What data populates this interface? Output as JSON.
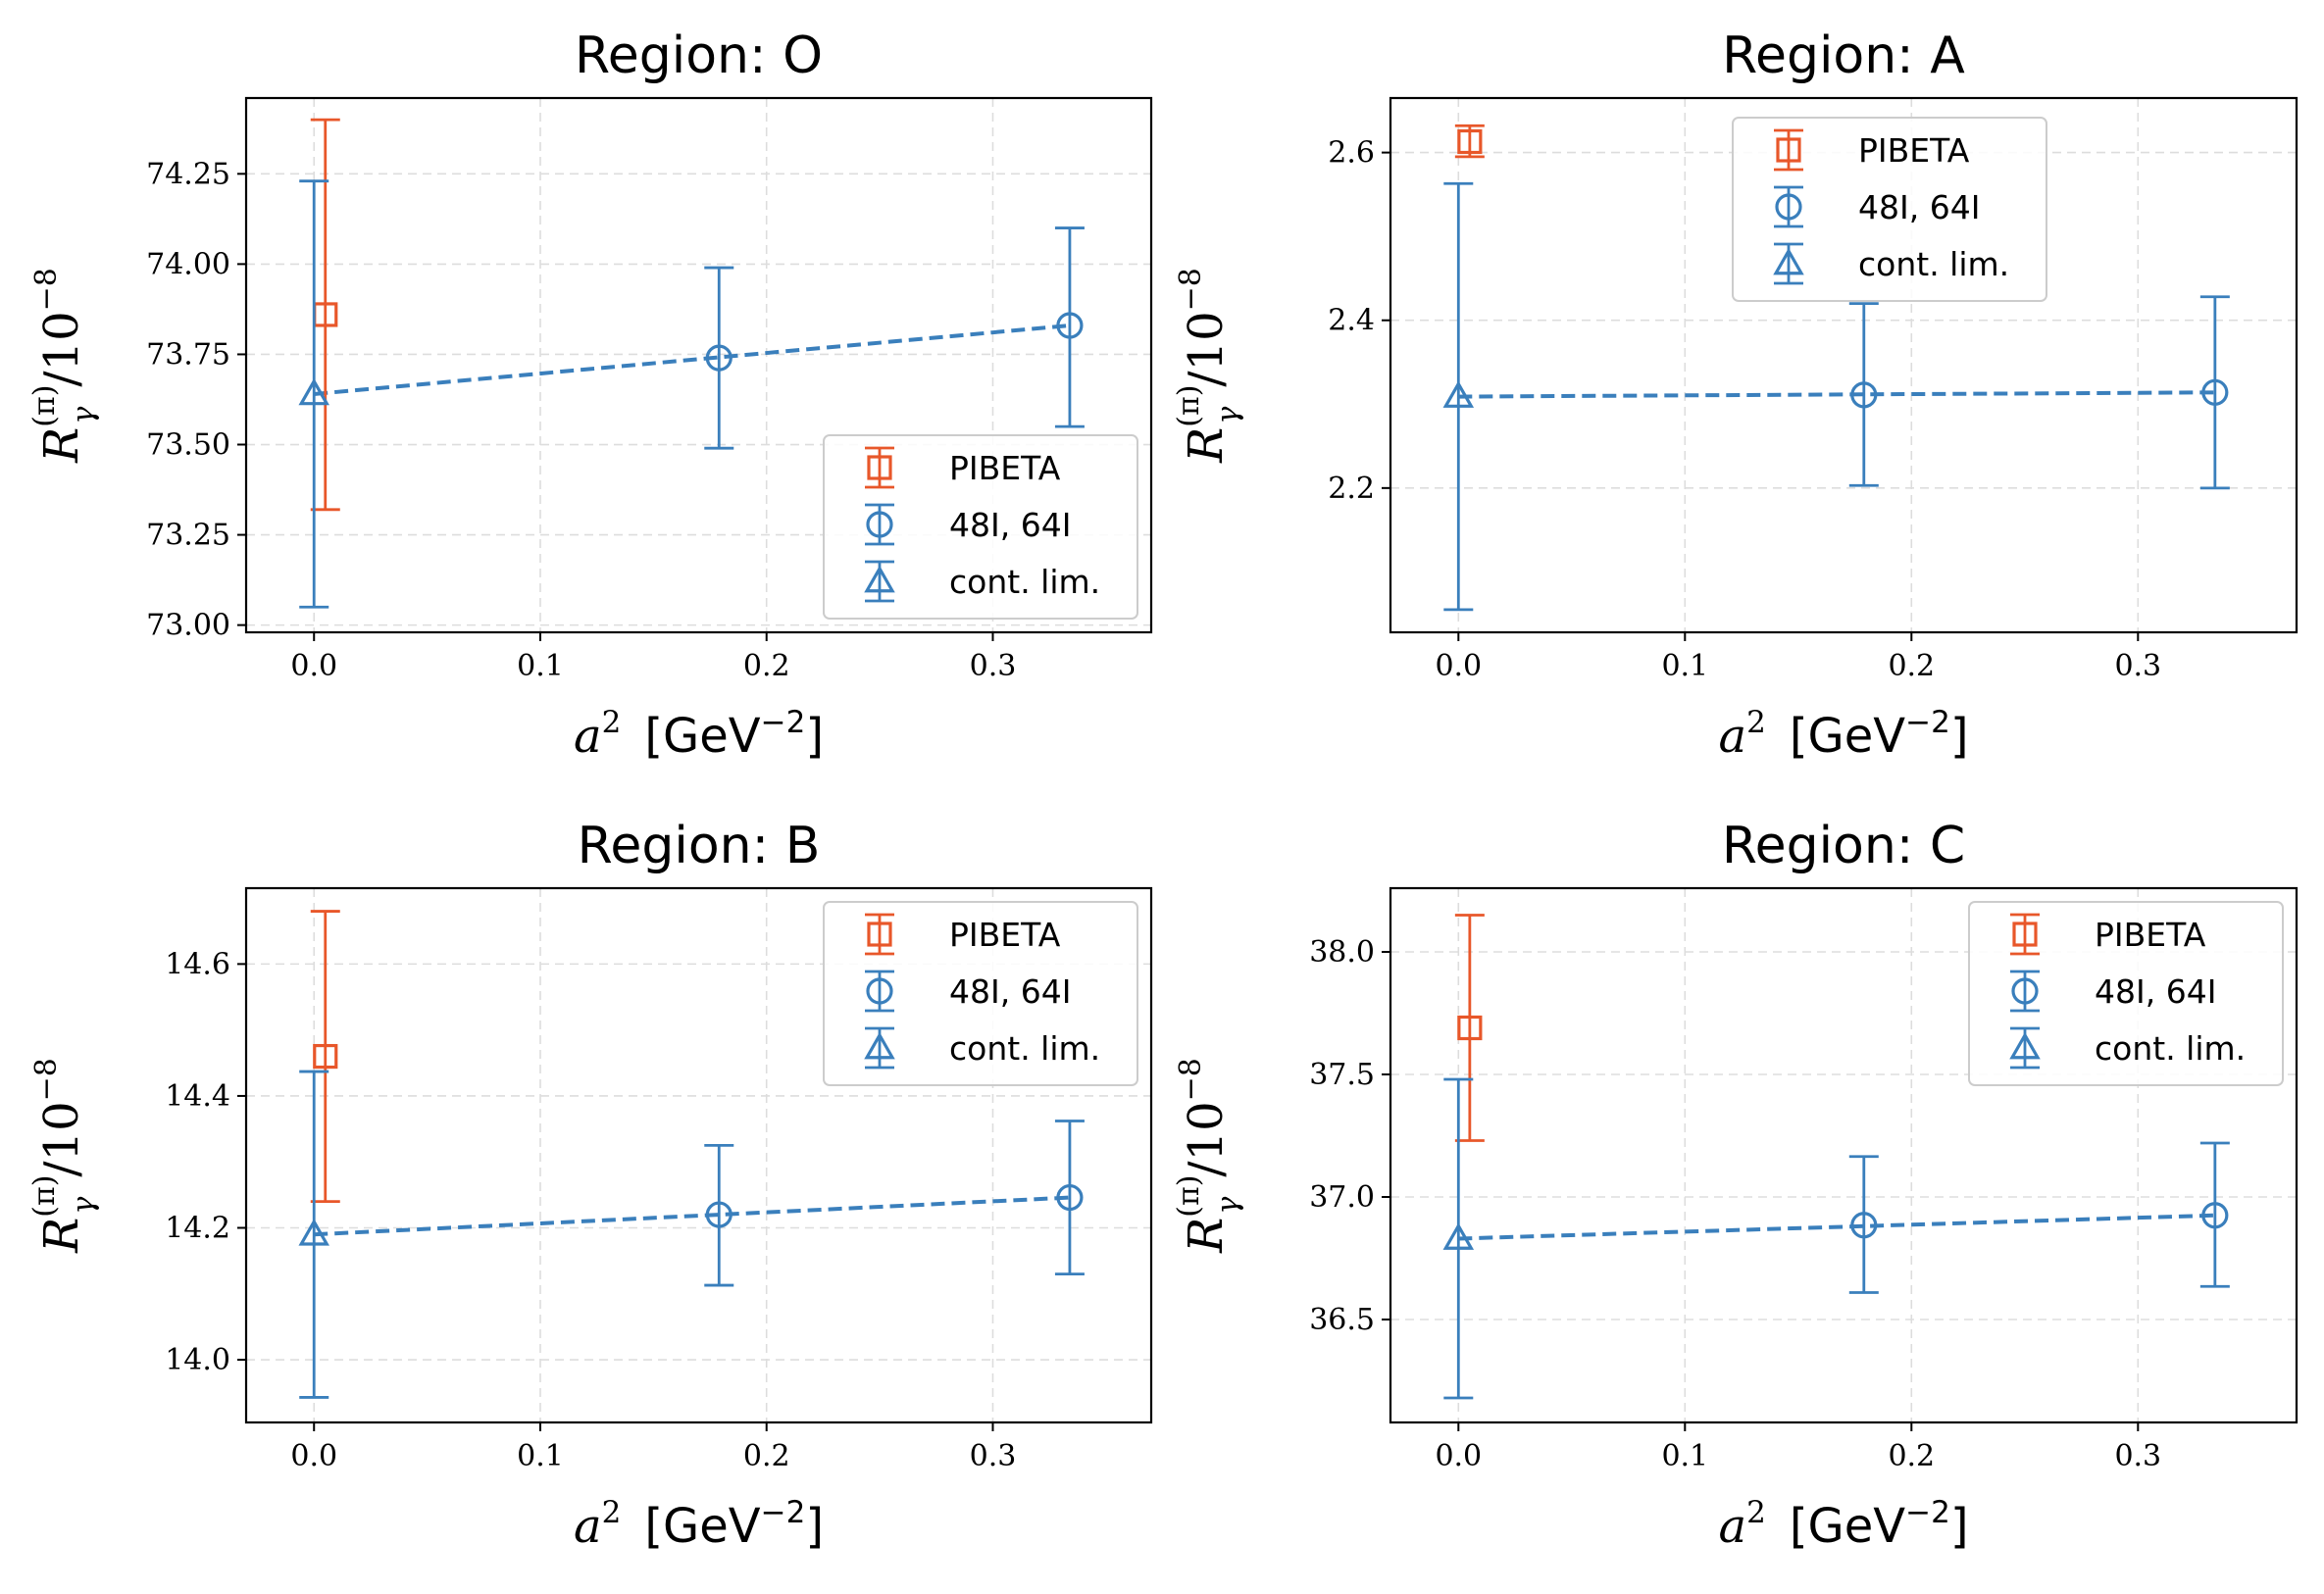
{
  "colors": {
    "pibeta": "#e8572a",
    "lattice": "#3a7fbc",
    "grid": "#dddddd"
  },
  "chart_data": [
    {
      "type": "scatter",
      "title": "Region:  O",
      "xlabel": {
        "var": "a",
        "sup": "2",
        "unit": "[GeV",
        "unit_sup": "−2",
        "unit_close": "]"
      },
      "ylabel": {
        "var": "R",
        "sup": "(π)",
        "sub": "γ",
        "tail": "/10",
        "tail_sup": "−8"
      },
      "xlim": [
        -0.03,
        0.37
      ],
      "ylim": [
        72.98,
        74.46
      ],
      "xticks": [
        0.0,
        0.1,
        0.2,
        0.3
      ],
      "xticklabels": [
        "0.0",
        "0.1",
        "0.2",
        "0.3"
      ],
      "yticks": [
        73.0,
        73.25,
        73.5,
        73.75,
        74.0,
        74.25
      ],
      "yticklabels": [
        "73.00",
        "73.25",
        "73.50",
        "73.75",
        "74.00",
        "74.25"
      ],
      "legend_position": "lower-right",
      "series": [
        {
          "name": "PIBETA",
          "marker": "square",
          "color": "pibeta",
          "points": [
            {
              "x": 0.005,
              "y": 73.86,
              "ylo": 73.32,
              "yhi": 74.4
            }
          ]
        },
        {
          "name": "48I, 64I",
          "marker": "circle",
          "color": "lattice",
          "points": [
            {
              "x": 0.179,
              "y": 73.74,
              "ylo": 73.49,
              "yhi": 73.99
            },
            {
              "x": 0.334,
              "y": 73.83,
              "ylo": 73.55,
              "yhi": 74.1
            }
          ]
        },
        {
          "name": "cont. lim.",
          "marker": "triangle",
          "color": "lattice",
          "points": [
            {
              "x": 0.0,
              "y": 73.64,
              "ylo": 73.05,
              "yhi": 74.23
            }
          ]
        }
      ],
      "fit_line": {
        "x": [
          0.0,
          0.334
        ],
        "y": [
          73.64,
          73.83
        ]
      }
    },
    {
      "type": "scatter",
      "title": "Region:  A",
      "xlabel": {
        "var": "a",
        "sup": "2",
        "unit": "[GeV",
        "unit_sup": "−2",
        "unit_close": "]"
      },
      "ylabel": {
        "var": "R",
        "sup": "(π)",
        "sub": "γ",
        "tail": "/10",
        "tail_sup": "−8"
      },
      "xlim": [
        -0.03,
        0.37
      ],
      "ylim": [
        2.028,
        2.665
      ],
      "xticks": [
        0.0,
        0.1,
        0.2,
        0.3
      ],
      "xticklabels": [
        "0.0",
        "0.1",
        "0.2",
        "0.3"
      ],
      "yticks": [
        2.2,
        2.4,
        2.6
      ],
      "yticklabels": [
        "2.2",
        "2.4",
        "2.6"
      ],
      "legend_position": "upper-center",
      "series": [
        {
          "name": "PIBETA",
          "marker": "square",
          "color": "pibeta",
          "points": [
            {
              "x": 0.005,
              "y": 2.613,
              "ylo": 2.595,
              "yhi": 2.632
            }
          ]
        },
        {
          "name": "48I, 64I",
          "marker": "circle",
          "color": "lattice",
          "points": [
            {
              "x": 0.179,
              "y": 2.311,
              "ylo": 2.203,
              "yhi": 2.42
            },
            {
              "x": 0.334,
              "y": 2.314,
              "ylo": 2.2,
              "yhi": 2.428
            }
          ]
        },
        {
          "name": "cont. lim.",
          "marker": "triangle",
          "color": "lattice",
          "points": [
            {
              "x": 0.0,
              "y": 2.309,
              "ylo": 2.055,
              "yhi": 2.563
            }
          ]
        }
      ],
      "fit_line": {
        "x": [
          0.0,
          0.334
        ],
        "y": [
          2.309,
          2.314
        ]
      }
    },
    {
      "type": "scatter",
      "title": "Region:  B",
      "xlabel": {
        "var": "a",
        "sup": "2",
        "unit": "[GeV",
        "unit_sup": "−2",
        "unit_close": "]"
      },
      "ylabel": {
        "var": "R",
        "sup": "(π)",
        "sub": "γ",
        "tail": "/10",
        "tail_sup": "−8"
      },
      "xlim": [
        -0.03,
        0.37
      ],
      "ylim": [
        13.905,
        14.715
      ],
      "xticks": [
        0.0,
        0.1,
        0.2,
        0.3
      ],
      "xticklabels": [
        "0.0",
        "0.1",
        "0.2",
        "0.3"
      ],
      "yticks": [
        14.0,
        14.2,
        14.4,
        14.6
      ],
      "yticklabels": [
        "14.0",
        "14.2",
        "14.4",
        "14.6"
      ],
      "legend_position": "upper-right",
      "series": [
        {
          "name": "PIBETA",
          "marker": "square",
          "color": "pibeta",
          "points": [
            {
              "x": 0.005,
              "y": 14.46,
              "ylo": 14.24,
              "yhi": 14.68
            }
          ]
        },
        {
          "name": "48I, 64I",
          "marker": "circle",
          "color": "lattice",
          "points": [
            {
              "x": 0.179,
              "y": 14.22,
              "ylo": 14.113,
              "yhi": 14.325
            },
            {
              "x": 0.334,
              "y": 14.246,
              "ylo": 14.13,
              "yhi": 14.362
            }
          ]
        },
        {
          "name": "cont. lim.",
          "marker": "triangle",
          "color": "lattice",
          "points": [
            {
              "x": 0.0,
              "y": 14.19,
              "ylo": 13.943,
              "yhi": 14.437
            }
          ]
        }
      ],
      "fit_line": {
        "x": [
          0.0,
          0.334
        ],
        "y": [
          14.19,
          14.246
        ]
      }
    },
    {
      "type": "scatter",
      "title": "Region:  C",
      "xlabel": {
        "var": "a",
        "sup": "2",
        "unit": "[GeV",
        "unit_sup": "−2",
        "unit_close": "]"
      },
      "ylabel": {
        "var": "R",
        "sup": "(π)",
        "sub": "γ",
        "tail": "/10",
        "tail_sup": "−8"
      },
      "xlim": [
        -0.03,
        0.37
      ],
      "ylim": [
        36.08,
        38.26
      ],
      "xticks": [
        0.0,
        0.1,
        0.2,
        0.3
      ],
      "xticklabels": [
        "0.0",
        "0.1",
        "0.2",
        "0.3"
      ],
      "yticks": [
        36.5,
        37.0,
        37.5,
        38.0
      ],
      "yticklabels": [
        "36.5",
        "37.0",
        "37.5",
        "38.0"
      ],
      "legend_position": "upper-right",
      "series": [
        {
          "name": "PIBETA",
          "marker": "square",
          "color": "pibeta",
          "points": [
            {
              "x": 0.005,
              "y": 37.69,
              "ylo": 37.23,
              "yhi": 38.15
            }
          ]
        },
        {
          "name": "48I, 64I",
          "marker": "circle",
          "color": "lattice",
          "points": [
            {
              "x": 0.179,
              "y": 36.885,
              "ylo": 36.61,
              "yhi": 37.165
            },
            {
              "x": 0.334,
              "y": 36.925,
              "ylo": 36.635,
              "yhi": 37.22
            }
          ]
        },
        {
          "name": "cont. lim.",
          "marker": "triangle",
          "color": "lattice",
          "points": [
            {
              "x": 0.0,
              "y": 36.83,
              "ylo": 36.18,
              "yhi": 37.48
            }
          ]
        }
      ],
      "fit_line": {
        "x": [
          0.0,
          0.334
        ],
        "y": [
          36.83,
          36.925
        ]
      }
    }
  ]
}
